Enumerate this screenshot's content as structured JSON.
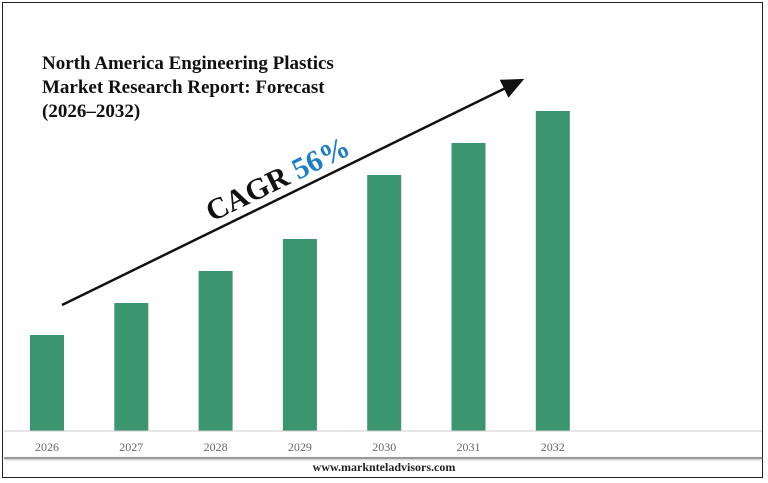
{
  "chart_data": {
    "type": "bar",
    "title": "North America Engineering Plastics Market Research Report: Forecast (2026–2032)",
    "title_lines": [
      "North America Engineering Plastics",
      "Market Research Report: Forecast",
      "(2026–2032)"
    ],
    "categories": [
      "2026",
      "2027",
      "2028",
      "2029",
      "2030",
      "2031",
      "2032"
    ],
    "values": [
      3,
      4,
      5,
      6,
      8,
      9,
      10
    ],
    "xlabel": "",
    "ylabel": "",
    "ylim": [
      0,
      10
    ],
    "grid": false,
    "bar_color": "#3b9670",
    "annotation": {
      "label": "CAGR",
      "value": "56%",
      "value_color": "#1a7fc7",
      "arrow": "upward trend arrow"
    }
  },
  "footer": {
    "url": "www.marknteladvisors.com"
  }
}
